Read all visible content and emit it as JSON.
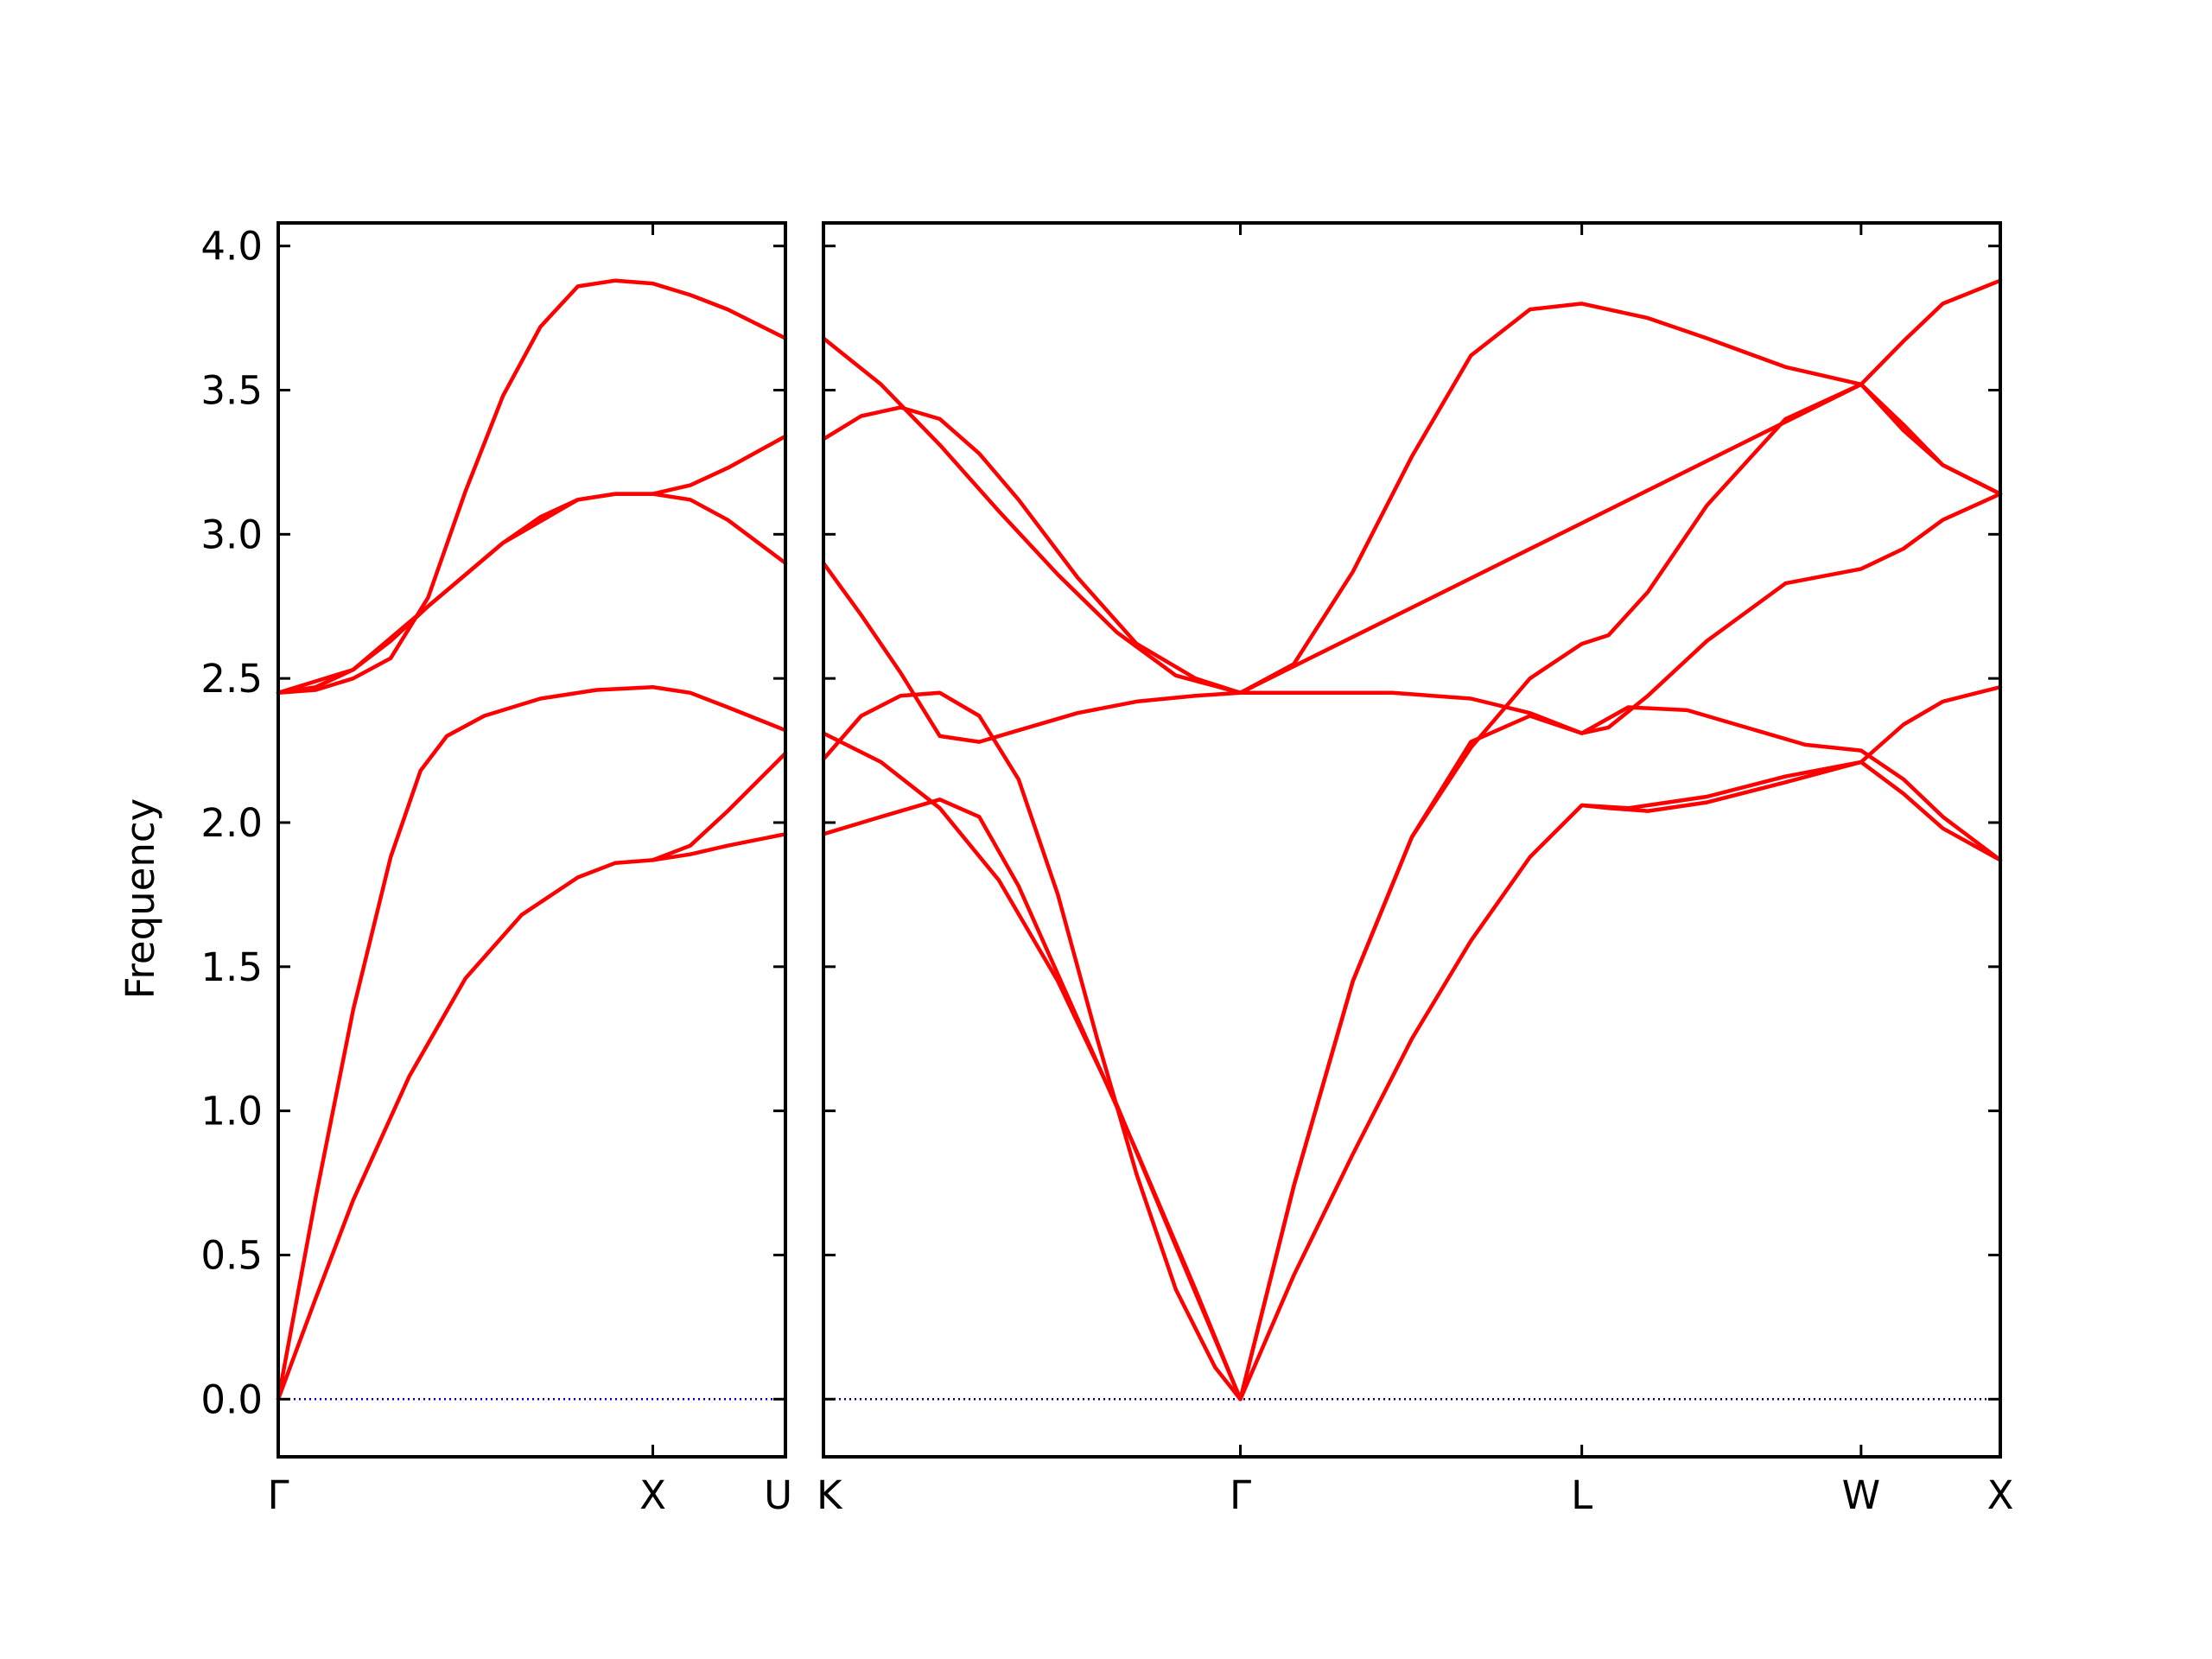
{
  "chart_data": {
    "type": "line",
    "title": "",
    "ylabel": "Frequency",
    "ylim": [
      -0.2,
      4.08
    ],
    "yticks": [
      "0.0",
      "0.5",
      "1.0",
      "1.5",
      "2.0",
      "2.5",
      "3.0",
      "3.5",
      "4.0"
    ],
    "grid": false,
    "legend": "none",
    "colors": {
      "bands": "#ff0000",
      "zero_line": "#0000aa",
      "frame": "#000000"
    },
    "path_ticks": [
      "Γ",
      "X",
      "U|K",
      "Γ",
      "L",
      "W",
      "X"
    ],
    "panels": [
      {
        "name": "panel-1",
        "xticks": [
          {
            "x": 0.0,
            "label": "Γ"
          },
          {
            "x": 1.0,
            "label": "X"
          },
          {
            "x": 1.354,
            "label": "U"
          }
        ],
        "xrange": [
          0.0,
          1.354
        ],
        "bands": [
          {
            "name": "band-1",
            "x": [
              0,
              0.1,
              0.2,
              0.35,
              0.5,
              0.65,
              0.8,
              0.9,
              1.0,
              1.1,
              1.2,
              1.354
            ],
            "y": [
              0,
              0.35,
              0.69,
              1.12,
              1.46,
              1.68,
              1.81,
              1.86,
              1.87,
              1.89,
              1.92,
              1.96
            ]
          },
          {
            "name": "band-2",
            "x": [
              0,
              0.1,
              0.2,
              0.3,
              0.38,
              0.45,
              0.55,
              0.7,
              0.85,
              1.0,
              1.1,
              1.2,
              1.354
            ],
            "y": [
              0,
              0.7,
              1.35,
              1.88,
              2.18,
              2.3,
              2.37,
              2.43,
              2.46,
              2.47,
              2.45,
              2.4,
              2.32
            ]
          },
          {
            "name": "band-3",
            "x": [
              0,
              0.1,
              0.2,
              0.3,
              0.4,
              0.5,
              0.6,
              0.7,
              0.8,
              0.9,
              1.0,
              1.1,
              1.2,
              1.354
            ],
            "y": [
              2.45,
              2.47,
              2.53,
              2.63,
              2.75,
              2.86,
              2.97,
              3.06,
              3.12,
              3.14,
              3.14,
              3.12,
              3.05,
              2.9
            ]
          },
          {
            "name": "band-4",
            "x": [
              0,
              0.1,
              0.2,
              0.3,
              0.4,
              0.5,
              0.6,
              0.7,
              0.8,
              0.9,
              1.0,
              1.1,
              1.2,
              1.354
            ],
            "y": [
              2.45,
              2.46,
              2.5,
              2.57,
              2.78,
              3.15,
              3.48,
              3.72,
              3.86,
              3.88,
              3.87,
              3.83,
              3.78,
              3.68
            ]
          },
          {
            "name": "band-5",
            "x": [
              0,
              0.2,
              0.4,
              0.6,
              0.8,
              0.9,
              1.0,
              1.1,
              1.2,
              1.354
            ],
            "y": [
              2.45,
              2.53,
              2.75,
              2.97,
              3.12,
              3.14,
              3.14,
              3.17,
              3.23,
              3.34
            ]
          },
          {
            "name": "band-6",
            "x": [
              1.0,
              1.1,
              1.2,
              1.354
            ],
            "y": [
              1.87,
              1.92,
              2.04,
              2.24
            ]
          }
        ]
      },
      {
        "name": "panel-2",
        "xticks": [
          {
            "x": 1.354,
            "label": "K"
          },
          {
            "x": 2.414,
            "label": "Γ"
          },
          {
            "x": 3.282,
            "label": "L"
          },
          {
            "x": 3.992,
            "label": "W"
          },
          {
            "x": 4.346,
            "label": "X"
          }
        ],
        "xrange": [
          1.354,
          4.346
        ],
        "bands": [
          {
            "name": "band-1",
            "x": [
              1.354,
              1.5,
              1.65,
              1.8,
              1.95,
              2.1,
              2.25,
              2.414,
              2.55,
              2.7,
              2.85,
              3.0,
              3.15,
              3.282,
              3.35,
              3.45,
              3.6,
              3.8,
              3.992,
              4.1,
              4.2,
              4.346
            ],
            "y": [
              2.31,
              2.21,
              2.05,
              1.8,
              1.45,
              1.02,
              0.53,
              0.0,
              0.43,
              0.85,
              1.25,
              1.59,
              1.88,
              2.06,
              2.05,
              2.04,
              2.07,
              2.14,
              2.21,
              2.1,
              1.98,
              1.87
            ]
          },
          {
            "name": "band-2",
            "x": [
              1.354,
              1.5,
              1.65,
              1.75,
              1.85,
              2.0,
              2.15,
              2.3,
              2.414,
              2.55,
              2.7,
              2.85,
              3.0,
              3.15,
              3.282,
              3.35,
              3.45,
              3.6,
              3.8,
              3.992,
              4.1,
              4.2,
              4.346
            ],
            "y": [
              1.96,
              2.02,
              2.08,
              2.02,
              1.78,
              1.32,
              0.86,
              0.38,
              0.0,
              0.74,
              1.45,
              1.95,
              2.26,
              2.5,
              2.62,
              2.65,
              2.8,
              3.1,
              3.4,
              3.52,
              3.38,
              3.24,
              3.14
            ]
          },
          {
            "name": "band-3",
            "x": [
              1.354,
              1.45,
              1.55,
              1.65,
              1.75,
              1.85,
              1.95,
              2.05,
              2.15,
              2.25,
              2.35,
              2.414,
              2.55,
              2.7,
              2.85,
              3.0,
              3.15,
              3.282,
              3.35,
              3.45,
              3.6,
              3.8,
              3.992,
              4.1,
              4.2,
              4.346
            ],
            "y": [
              2.22,
              2.37,
              2.44,
              2.45,
              2.37,
              2.15,
              1.75,
              1.25,
              0.78,
              0.38,
              0.11,
              0.0,
              0.74,
              1.45,
              1.95,
              2.28,
              2.37,
              2.31,
              2.33,
              2.44,
              2.63,
              2.83,
              2.88,
              2.95,
              3.05,
              3.14
            ]
          },
          {
            "name": "band-4",
            "x": [
              1.354,
              1.45,
              1.55,
              1.65,
              1.75,
              1.85,
              2.0,
              2.15,
              2.3,
              2.414,
              2.6,
              2.8,
              3.0,
              3.15,
              3.282,
              3.4,
              3.55,
              3.7,
              3.85,
              3.992,
              4.1,
              4.2,
              4.346
            ],
            "y": [
              2.9,
              2.72,
              2.52,
              2.3,
              2.28,
              2.32,
              2.38,
              2.42,
              2.44,
              2.45,
              2.45,
              2.45,
              2.43,
              2.38,
              2.31,
              2.4,
              2.39,
              2.33,
              2.27,
              2.25,
              2.15,
              2.02,
              1.87
            ]
          },
          {
            "name": "band-5",
            "x": [
              1.354,
              1.45,
              1.55,
              1.65,
              1.75,
              1.85,
              2.0,
              2.15,
              2.3,
              2.414,
              2.55,
              2.7,
              2.85,
              3.0,
              3.15,
              3.282,
              3.45,
              3.6,
              3.8,
              3.992,
              4.1,
              4.2,
              4.346
            ],
            "y": [
              3.33,
              3.41,
              3.44,
              3.4,
              3.28,
              3.12,
              2.85,
              2.62,
              2.5,
              2.45,
              2.55,
              2.87,
              3.27,
              3.62,
              3.78,
              3.8,
              3.75,
              3.68,
              3.58,
              3.52,
              3.67,
              3.8,
              3.88
            ]
          },
          {
            "name": "band-6",
            "x": [
              1.354,
              1.5,
              1.65,
              1.8,
              1.95,
              2.1,
              2.25,
              2.414,
              3.992,
              4.1,
              4.2,
              4.346
            ],
            "y": [
              3.68,
              3.52,
              3.31,
              3.08,
              2.86,
              2.66,
              2.51,
              2.45,
              3.52,
              3.36,
              3.24,
              3.14
            ]
          },
          {
            "name": "band-7",
            "x": [
              3.282,
              3.4,
              3.6,
              3.8,
              3.992,
              4.1,
              4.2,
              4.346
            ],
            "y": [
              2.06,
              2.05,
              2.09,
              2.16,
              2.21,
              2.34,
              2.42,
              2.47
            ]
          }
        ]
      }
    ]
  }
}
